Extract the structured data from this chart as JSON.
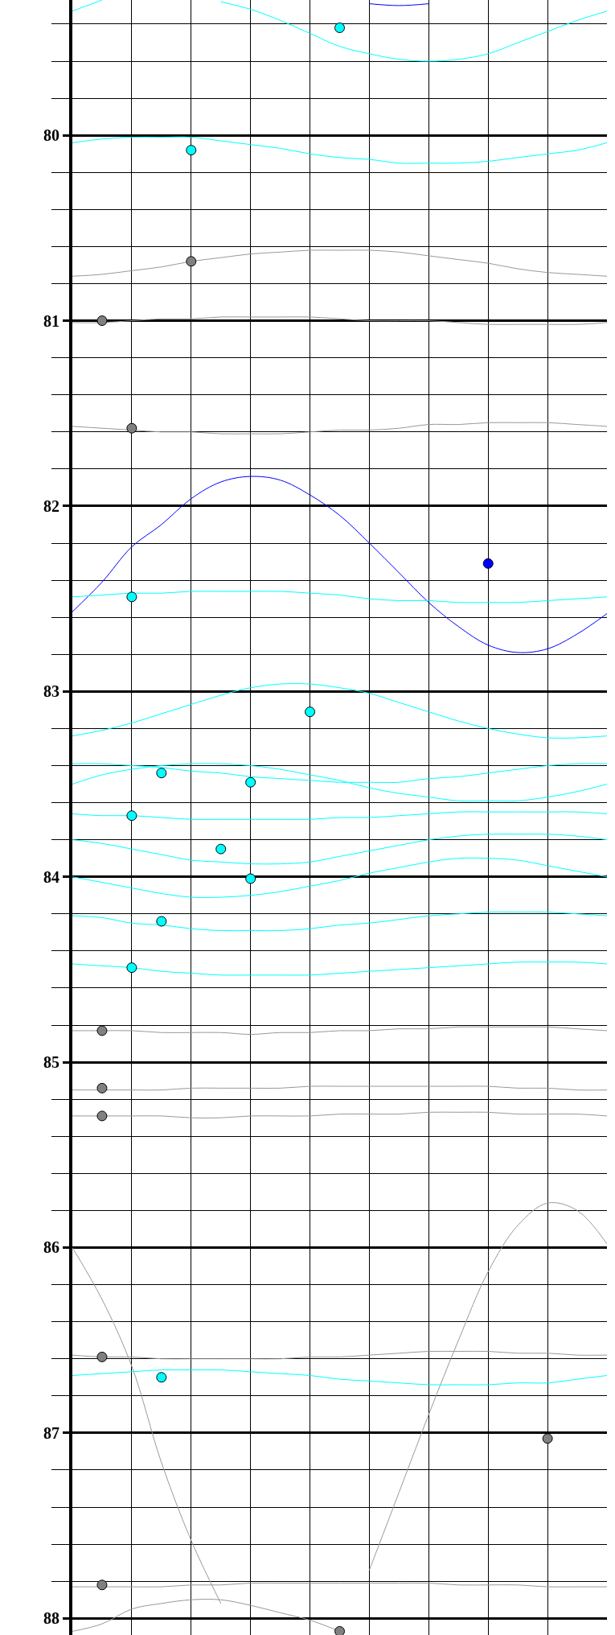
{
  "chart_data": {
    "type": "line",
    "categories": [
      null,
      null,
      null,
      null,
      null,
      null,
      null,
      null,
      null,
      null,
      null,
      null,
      null,
      null,
      null,
      null,
      null,
      null,
      null
    ],
    "ylim": [
      88.09,
      79.27
    ],
    "yticks": [
      {
        "value": 79.4,
        "label": null
      },
      {
        "value": 79.6,
        "label": null
      },
      {
        "value": 79.8,
        "label": null
      },
      80,
      {
        "value": 80.2,
        "label": null
      },
      {
        "value": 80.4,
        "label": null
      },
      {
        "value": 80.6,
        "label": null
      },
      {
        "value": 80.8,
        "label": null
      },
      81,
      {
        "value": 81.2,
        "label": null
      },
      {
        "value": 81.4,
        "label": null
      },
      {
        "value": 81.6,
        "label": null
      },
      {
        "value": 81.8,
        "label": null
      },
      82,
      {
        "value": 82.2,
        "label": null
      },
      {
        "value": 82.4,
        "label": null
      },
      {
        "value": 82.6,
        "label": null
      },
      {
        "value": 82.8,
        "label": null
      },
      83,
      {
        "value": 83.2,
        "label": null
      },
      {
        "value": 83.4,
        "label": null
      },
      {
        "value": 83.6,
        "label": null
      },
      {
        "value": 83.8,
        "label": null
      },
      84,
      {
        "value": 84.2,
        "label": null
      },
      {
        "value": 84.4,
        "label": null
      },
      {
        "value": 84.6,
        "label": null
      },
      {
        "value": 84.8,
        "label": null
      },
      85,
      {
        "value": 85.2,
        "label": null
      },
      {
        "value": 85.4,
        "label": null
      },
      {
        "value": 85.6,
        "label": null
      },
      {
        "value": 85.8,
        "label": null
      },
      86,
      {
        "value": 86.2,
        "label": null
      },
      {
        "value": 86.4,
        "label": null
      },
      {
        "value": 86.6,
        "label": null
      },
      {
        "value": 86.8,
        "label": null
      },
      87,
      {
        "value": 87.2,
        "label": null
      },
      {
        "value": 87.4,
        "label": null
      },
      {
        "value": 87.6,
        "label": null
      },
      {
        "value": 87.8,
        "label": null
      },
      88
    ],
    "tick_labels": "y",
    "grid": true,
    "marker": "none",
    "line_style": "solid",
    "series": [
      {
        "color": "#0000ff",
        "values": [
          null,
          null,
          null,
          null,
          null,
          null,
          null,
          null,
          null,
          null,
          79.29,
          79.3,
          79.29,
          null,
          null,
          null,
          null,
          null,
          null
        ]
      },
      {
        "color": "#00ffff",
        "values": [
          79.33,
          79.27,
          null,
          null,
          null,
          79.28,
          79.32,
          79.38,
          79.45,
          79.52,
          79.56,
          79.59,
          79.6,
          79.59,
          79.56,
          79.5,
          79.44,
          79.38,
          79.33
        ]
      },
      {
        "color": "#00ffff",
        "values": [
          80.04,
          80.02,
          80.01,
          80.01,
          80.01,
          80.03,
          80.05,
          80.07,
          80.1,
          80.12,
          80.13,
          80.15,
          80.15,
          80.15,
          80.14,
          80.12,
          80.1,
          80.08,
          80.04
        ]
      },
      {
        "color": "#999999",
        "values": [
          80.76,
          80.75,
          80.73,
          80.71,
          80.68,
          80.66,
          80.64,
          80.63,
          80.62,
          80.62,
          80.62,
          80.63,
          80.65,
          80.67,
          80.69,
          80.72,
          80.74,
          80.75,
          80.76
        ]
      },
      {
        "color": "#999999",
        "values": [
          81.01,
          81.01,
          81.0,
          80.99,
          80.99,
          80.98,
          80.98,
          80.98,
          80.98,
          80.99,
          81.0,
          81.0,
          81.0,
          81.01,
          81.02,
          81.02,
          81.02,
          81.02,
          81.01
        ]
      },
      {
        "color": "#999999",
        "values": [
          81.57,
          81.58,
          81.59,
          81.6,
          81.6,
          81.61,
          81.61,
          81.61,
          81.6,
          81.59,
          81.59,
          81.58,
          81.56,
          81.56,
          81.55,
          81.55,
          81.55,
          81.56,
          81.57
        ]
      },
      {
        "color": "#0000ff",
        "values": [
          82.57,
          82.41,
          82.22,
          82.1,
          81.96,
          81.87,
          81.84,
          81.86,
          81.94,
          82.05,
          82.2,
          82.36,
          82.52,
          82.65,
          82.75,
          82.79,
          82.77,
          82.69,
          82.58
        ]
      },
      {
        "color": "#00ffff",
        "values": [
          82.49,
          82.48,
          82.47,
          82.47,
          82.46,
          82.46,
          82.46,
          82.46,
          82.47,
          82.48,
          82.5,
          82.51,
          82.51,
          82.52,
          82.52,
          82.52,
          82.51,
          82.5,
          82.49
        ]
      },
      {
        "color": "#00ffff",
        "values": [
          83.24,
          83.21,
          83.17,
          83.12,
          83.07,
          83.02,
          82.98,
          82.96,
          82.96,
          82.98,
          83.01,
          83.06,
          83.11,
          83.16,
          83.2,
          83.23,
          83.25,
          83.25,
          83.24
        ]
      },
      {
        "color": "#00ffff",
        "values": [
          83.39,
          83.39,
          83.4,
          83.41,
          83.43,
          83.44,
          83.46,
          83.47,
          83.48,
          83.49,
          83.49,
          83.49,
          83.47,
          83.46,
          83.44,
          83.42,
          83.4,
          83.39,
          83.39
        ]
      },
      {
        "color": "#00ffff",
        "values": [
          83.5,
          83.45,
          83.42,
          83.4,
          83.39,
          83.39,
          83.4,
          83.42,
          83.45,
          83.48,
          83.52,
          83.55,
          83.57,
          83.59,
          83.59,
          83.59,
          83.57,
          83.54,
          83.5
        ]
      },
      {
        "color": "#00ffff",
        "values": [
          83.66,
          83.67,
          83.67,
          83.68,
          83.69,
          83.69,
          83.69,
          83.69,
          83.69,
          83.68,
          83.68,
          83.67,
          83.66,
          83.65,
          83.65,
          83.65,
          83.65,
          83.65,
          83.66
        ]
      },
      {
        "color": "#00ffff",
        "values": [
          83.8,
          83.82,
          83.85,
          83.88,
          83.91,
          83.92,
          83.93,
          83.93,
          83.92,
          83.89,
          83.86,
          83.83,
          83.8,
          83.78,
          83.77,
          83.77,
          83.77,
          83.78,
          83.8
        ]
      },
      {
        "color": "#00ffff",
        "values": [
          84.0,
          84.03,
          84.06,
          84.09,
          84.11,
          84.11,
          84.1,
          84.08,
          84.05,
          84.02,
          83.98,
          83.95,
          83.92,
          83.9,
          83.9,
          83.91,
          83.94,
          83.97,
          84.0
        ]
      },
      {
        "color": "#00ffff",
        "values": [
          84.21,
          84.22,
          84.25,
          84.26,
          84.28,
          84.29,
          84.29,
          84.29,
          84.28,
          84.26,
          84.25,
          84.23,
          84.21,
          84.2,
          84.19,
          84.19,
          84.19,
          84.2,
          84.21
        ]
      },
      {
        "color": "#00ffff",
        "values": [
          84.47,
          84.48,
          84.49,
          84.51,
          84.52,
          84.53,
          84.53,
          84.53,
          84.53,
          84.52,
          84.51,
          84.5,
          84.49,
          84.48,
          84.47,
          84.46,
          84.46,
          84.46,
          84.47
        ]
      },
      {
        "color": "#999999",
        "values": [
          84.83,
          84.83,
          84.83,
          84.84,
          84.84,
          84.84,
          84.85,
          84.84,
          84.84,
          84.83,
          84.83,
          84.82,
          84.82,
          84.81,
          84.81,
          84.81,
          84.81,
          84.82,
          84.83
        ]
      },
      {
        "color": "#999999",
        "values": [
          85.15,
          85.15,
          85.15,
          85.15,
          85.14,
          85.14,
          85.14,
          85.14,
          85.13,
          85.13,
          85.13,
          85.13,
          85.13,
          85.13,
          85.13,
          85.14,
          85.14,
          85.15,
          85.15
        ]
      },
      {
        "color": "#999999",
        "values": [
          85.29,
          85.29,
          85.29,
          85.29,
          85.3,
          85.3,
          85.29,
          85.29,
          85.29,
          85.28,
          85.28,
          85.28,
          85.27,
          85.27,
          85.27,
          85.28,
          85.28,
          85.28,
          85.29
        ]
      },
      {
        "color": "#999999",
        "values": [
          86.0,
          86.28,
          86.64,
          87.16,
          87.58,
          87.92,
          null,
          null,
          null,
          null,
          87.74,
          87.32,
          86.9,
          86.5,
          86.13,
          85.88,
          85.76,
          85.8,
          85.98
        ]
      },
      {
        "color": "#999999",
        "values": [
          86.58,
          86.59,
          86.59,
          86.6,
          86.6,
          86.6,
          86.6,
          86.6,
          86.59,
          86.59,
          86.58,
          86.57,
          86.56,
          86.56,
          86.56,
          86.57,
          86.57,
          86.58,
          86.58
        ]
      },
      {
        "color": "#00ffff",
        "values": [
          86.69,
          86.68,
          86.67,
          86.66,
          86.66,
          86.66,
          86.67,
          86.68,
          86.69,
          86.71,
          86.72,
          86.73,
          86.74,
          86.74,
          86.74,
          86.73,
          86.73,
          86.71,
          86.69
        ]
      },
      {
        "color": "#999999",
        "values": [
          87.83,
          87.83,
          87.83,
          87.83,
          87.82,
          87.82,
          87.81,
          87.81,
          87.81,
          87.81,
          87.81,
          87.81,
          87.81,
          87.82,
          87.82,
          87.82,
          87.83,
          87.83,
          87.83
        ]
      },
      {
        "color": "#999999",
        "values": [
          88.07,
          88.03,
          87.95,
          87.92,
          87.9,
          87.9,
          87.93,
          87.97,
          88.01,
          88.07,
          null,
          null,
          null,
          null,
          null,
          null,
          null,
          null,
          null
        ]
      },
      {
        "type": "scatter",
        "marker": "circle",
        "color": "#00ffff",
        "values": [
          null,
          null,
          82.49,
          83.44,
          80.08,
          83.85,
          83.49,
          null,
          83.11,
          79.42,
          null,
          null,
          null,
          null,
          null,
          null,
          null,
          null,
          null
        ]
      },
      {
        "type": "scatter",
        "marker": "circle",
        "color": "#00ffff",
        "values": [
          null,
          null,
          83.67,
          84.24,
          null,
          null,
          84.01,
          null,
          null,
          null,
          null,
          null,
          null,
          null,
          null,
          null,
          null,
          null,
          null
        ]
      },
      {
        "type": "scatter",
        "marker": "circle",
        "color": "#00ffff",
        "values": [
          null,
          null,
          84.49,
          86.7,
          null,
          null,
          null,
          null,
          null,
          null,
          null,
          null,
          null,
          null,
          null,
          null,
          null,
          null,
          null
        ]
      },
      {
        "type": "scatter",
        "marker": "circle",
        "color": "#808080",
        "values": [
          null,
          81.0,
          81.58,
          null,
          80.68,
          null,
          null,
          null,
          null,
          88.07,
          null,
          null,
          null,
          null,
          null,
          null,
          87.03,
          null,
          null
        ]
      },
      {
        "type": "scatter",
        "marker": "circle",
        "color": "#808080",
        "values": [
          null,
          84.83,
          null,
          null,
          null,
          null,
          null,
          null,
          null,
          null,
          null,
          null,
          null,
          null,
          null,
          null,
          null,
          null,
          null
        ]
      },
      {
        "type": "scatter",
        "marker": "circle",
        "color": "#808080",
        "values": [
          null,
          85.14,
          null,
          null,
          null,
          null,
          null,
          null,
          null,
          null,
          null,
          null,
          null,
          null,
          null,
          null,
          null,
          null,
          null
        ]
      },
      {
        "type": "scatter",
        "marker": "circle",
        "color": "#808080",
        "values": [
          null,
          85.29,
          null,
          null,
          null,
          null,
          null,
          null,
          null,
          null,
          null,
          null,
          null,
          null,
          null,
          null,
          null,
          null,
          null
        ]
      },
      {
        "type": "scatter",
        "marker": "circle",
        "color": "#808080",
        "values": [
          null,
          86.59,
          null,
          null,
          null,
          null,
          null,
          null,
          null,
          null,
          null,
          null,
          null,
          null,
          null,
          null,
          null,
          null,
          null
        ]
      },
      {
        "type": "scatter",
        "marker": "circle",
        "color": "#808080",
        "values": [
          null,
          87.82,
          null,
          null,
          null,
          null,
          null,
          null,
          null,
          null,
          null,
          null,
          null,
          null,
          null,
          null,
          null,
          null,
          null
        ]
      },
      {
        "type": "scatter",
        "marker": "circle",
        "color": "#0000ff",
        "values": [
          null,
          null,
          null,
          null,
          null,
          null,
          null,
          null,
          null,
          null,
          null,
          null,
          null,
          null,
          82.31,
          null,
          null,
          null,
          null
        ]
      }
    ]
  }
}
